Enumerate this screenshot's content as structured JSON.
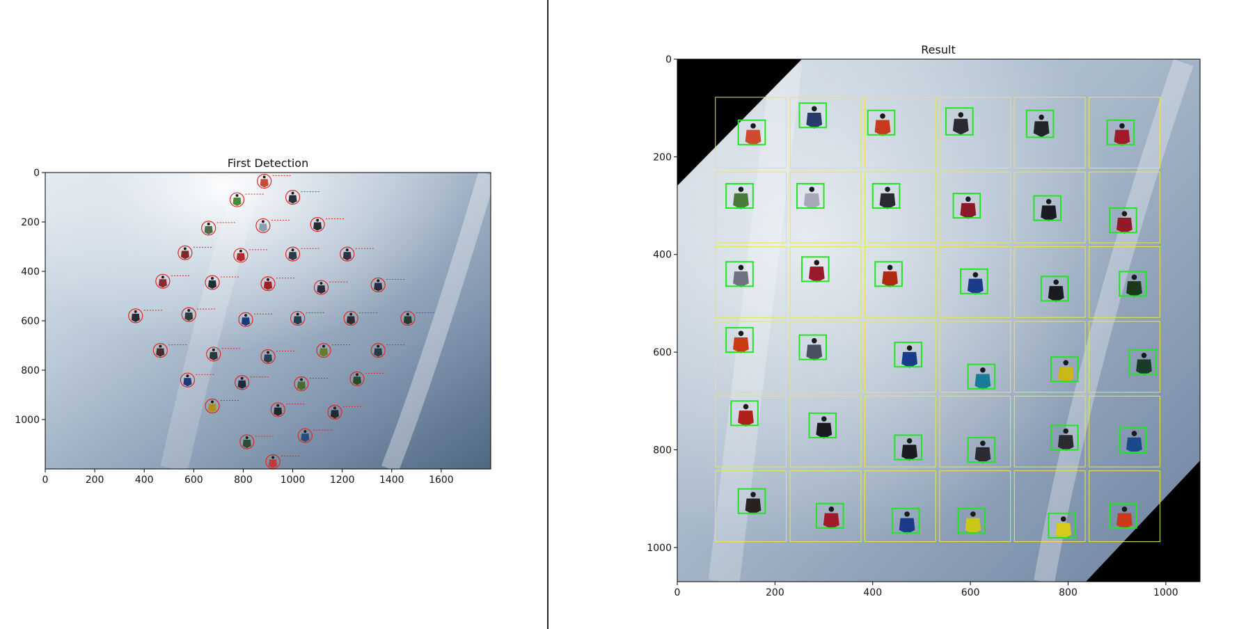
{
  "colors": {
    "sky_light": "#d9e2ea",
    "sky_mid": "#9fb2c6",
    "sky_dark": "#506781",
    "detect_circle": "#e0261b",
    "grid_cell": "#e8e84a",
    "detect_box": "#1fe61f",
    "mask": "#000000"
  },
  "left_plot": {
    "title": "First Detection",
    "x_ticks": [
      "0",
      "200",
      "400",
      "600",
      "800",
      "1000",
      "1200",
      "1400",
      "1600"
    ],
    "x_tick_values": [
      0,
      200,
      400,
      600,
      800,
      1000,
      1200,
      1400,
      1600
    ],
    "y_ticks": [
      "0",
      "200",
      "400",
      "600",
      "800",
      "1000"
    ],
    "y_tick_values": [
      0,
      200,
      400,
      600,
      800,
      1000
    ],
    "xlim": [
      0,
      1800
    ],
    "ylim": [
      1200,
      0
    ],
    "detections": [
      [
        885,
        35
      ],
      [
        775,
        110
      ],
      [
        1000,
        100
      ],
      [
        660,
        225
      ],
      [
        880,
        215
      ],
      [
        1100,
        210
      ],
      [
        565,
        325
      ],
      [
        790,
        335
      ],
      [
        1000,
        330
      ],
      [
        1220,
        330
      ],
      [
        475,
        440
      ],
      [
        675,
        445
      ],
      [
        900,
        450
      ],
      [
        1115,
        465
      ],
      [
        1345,
        455
      ],
      [
        365,
        580
      ],
      [
        580,
        575
      ],
      [
        810,
        595
      ],
      [
        1020,
        590
      ],
      [
        1235,
        590
      ],
      [
        1465,
        590
      ],
      [
        465,
        720
      ],
      [
        680,
        735
      ],
      [
        900,
        745
      ],
      [
        1125,
        720
      ],
      [
        1345,
        720
      ],
      [
        575,
        840
      ],
      [
        795,
        850
      ],
      [
        1035,
        855
      ],
      [
        1260,
        835
      ],
      [
        675,
        945
      ],
      [
        940,
        960
      ],
      [
        1170,
        970
      ],
      [
        815,
        1090
      ],
      [
        1050,
        1065
      ],
      [
        920,
        1170
      ]
    ],
    "suit_colors": [
      "#c84a3a",
      "#4a8a3a",
      "#2a3040",
      "#506a4a",
      "#8aa0b0",
      "#2a2a30",
      "#7a2a2a",
      "#b02a2a",
      "#303a4a",
      "#303040",
      "#8a2a2a",
      "#203030",
      "#a02020",
      "#2a2a3a",
      "#2a2a40",
      "#2a2a30",
      "#303a40",
      "#1a3a7a",
      "#2a3a50",
      "#2a2a30",
      "#2a3a30",
      "#4a2a2a",
      "#2a3a3a",
      "#2a4050",
      "#6a7a2a",
      "#2a3a40",
      "#203a7a",
      "#202a3a",
      "#4a6a2a",
      "#2a4a2a",
      "#b0901a",
      "#202a2a",
      "#202a30",
      "#2a4a3a",
      "#2a4a7a",
      "#c03a3a"
    ]
  },
  "right_plot": {
    "title": "Result",
    "x_ticks": [
      "0",
      "200",
      "400",
      "600",
      "800",
      "1000"
    ],
    "x_tick_values": [
      0,
      200,
      400,
      600,
      800,
      1000
    ],
    "y_ticks": [
      "0",
      "200",
      "400",
      "600",
      "800",
      "1000"
    ],
    "y_tick_values": [
      0,
      200,
      400,
      600,
      800,
      1000
    ],
    "xlim": [
      0,
      1070
    ],
    "ylim": [
      1070,
      0
    ],
    "grid_origin": [
      78,
      78
    ],
    "grid_cell_size": [
      145,
      145
    ],
    "grid_cols": 6,
    "grid_rows": 6,
    "boxes": [
      [
        125,
        125,
        180,
        175
      ],
      [
        250,
        90,
        305,
        140
      ],
      [
        390,
        105,
        445,
        155
      ],
      [
        550,
        100,
        605,
        155
      ],
      [
        715,
        105,
        770,
        160
      ],
      [
        880,
        125,
        935,
        175
      ],
      [
        100,
        255,
        155,
        305
      ],
      [
        245,
        255,
        300,
        305
      ],
      [
        400,
        255,
        455,
        305
      ],
      [
        565,
        275,
        620,
        325
      ],
      [
        730,
        280,
        785,
        330
      ],
      [
        885,
        305,
        940,
        355
      ],
      [
        100,
        415,
        155,
        465
      ],
      [
        255,
        405,
        310,
        455
      ],
      [
        405,
        415,
        460,
        465
      ],
      [
        580,
        430,
        635,
        480
      ],
      [
        745,
        445,
        800,
        495
      ],
      [
        905,
        435,
        960,
        485
      ],
      [
        100,
        550,
        155,
        600
      ],
      [
        250,
        565,
        305,
        615
      ],
      [
        445,
        580,
        500,
        630
      ],
      [
        595,
        625,
        650,
        675
      ],
      [
        765,
        610,
        820,
        660
      ],
      [
        925,
        595,
        980,
        645
      ],
      [
        110,
        700,
        165,
        750
      ],
      [
        270,
        725,
        325,
        775
      ],
      [
        445,
        770,
        500,
        820
      ],
      [
        595,
        775,
        650,
        825
      ],
      [
        765,
        750,
        820,
        800
      ],
      [
        905,
        755,
        960,
        805
      ],
      [
        125,
        880,
        180,
        930
      ],
      [
        285,
        910,
        340,
        960
      ],
      [
        440,
        920,
        495,
        970
      ],
      [
        575,
        920,
        630,
        970
      ],
      [
        760,
        930,
        815,
        980
      ],
      [
        885,
        910,
        940,
        960
      ]
    ],
    "suit_colors": [
      "#d04a30",
      "#2a3a6a",
      "#c8381a",
      "#2a2a30",
      "#20252a",
      "#a01a2a",
      "#4a7a3a",
      "#a8a8b8",
      "#2a2a30",
      "#8a1a2a",
      "#1a1a20",
      "#901a2a",
      "#707080",
      "#9a1a2a",
      "#b02a10",
      "#1a3a8a",
      "#1a1a20",
      "#1a3a1a",
      "#c83a10",
      "#4a5060",
      "#1a3a8a",
      "#1a7a9a",
      "#c8b81a",
      "#1a3a2a",
      "#b0201a",
      "#1a1a20",
      "#1a1a20",
      "#2a2a30",
      "#2a2a30",
      "#1a4a8a",
      "#2a2020",
      "#a01a2a",
      "#1a3a8a",
      "#c8c81a",
      "#d8c81a",
      "#c83a1a"
    ]
  }
}
